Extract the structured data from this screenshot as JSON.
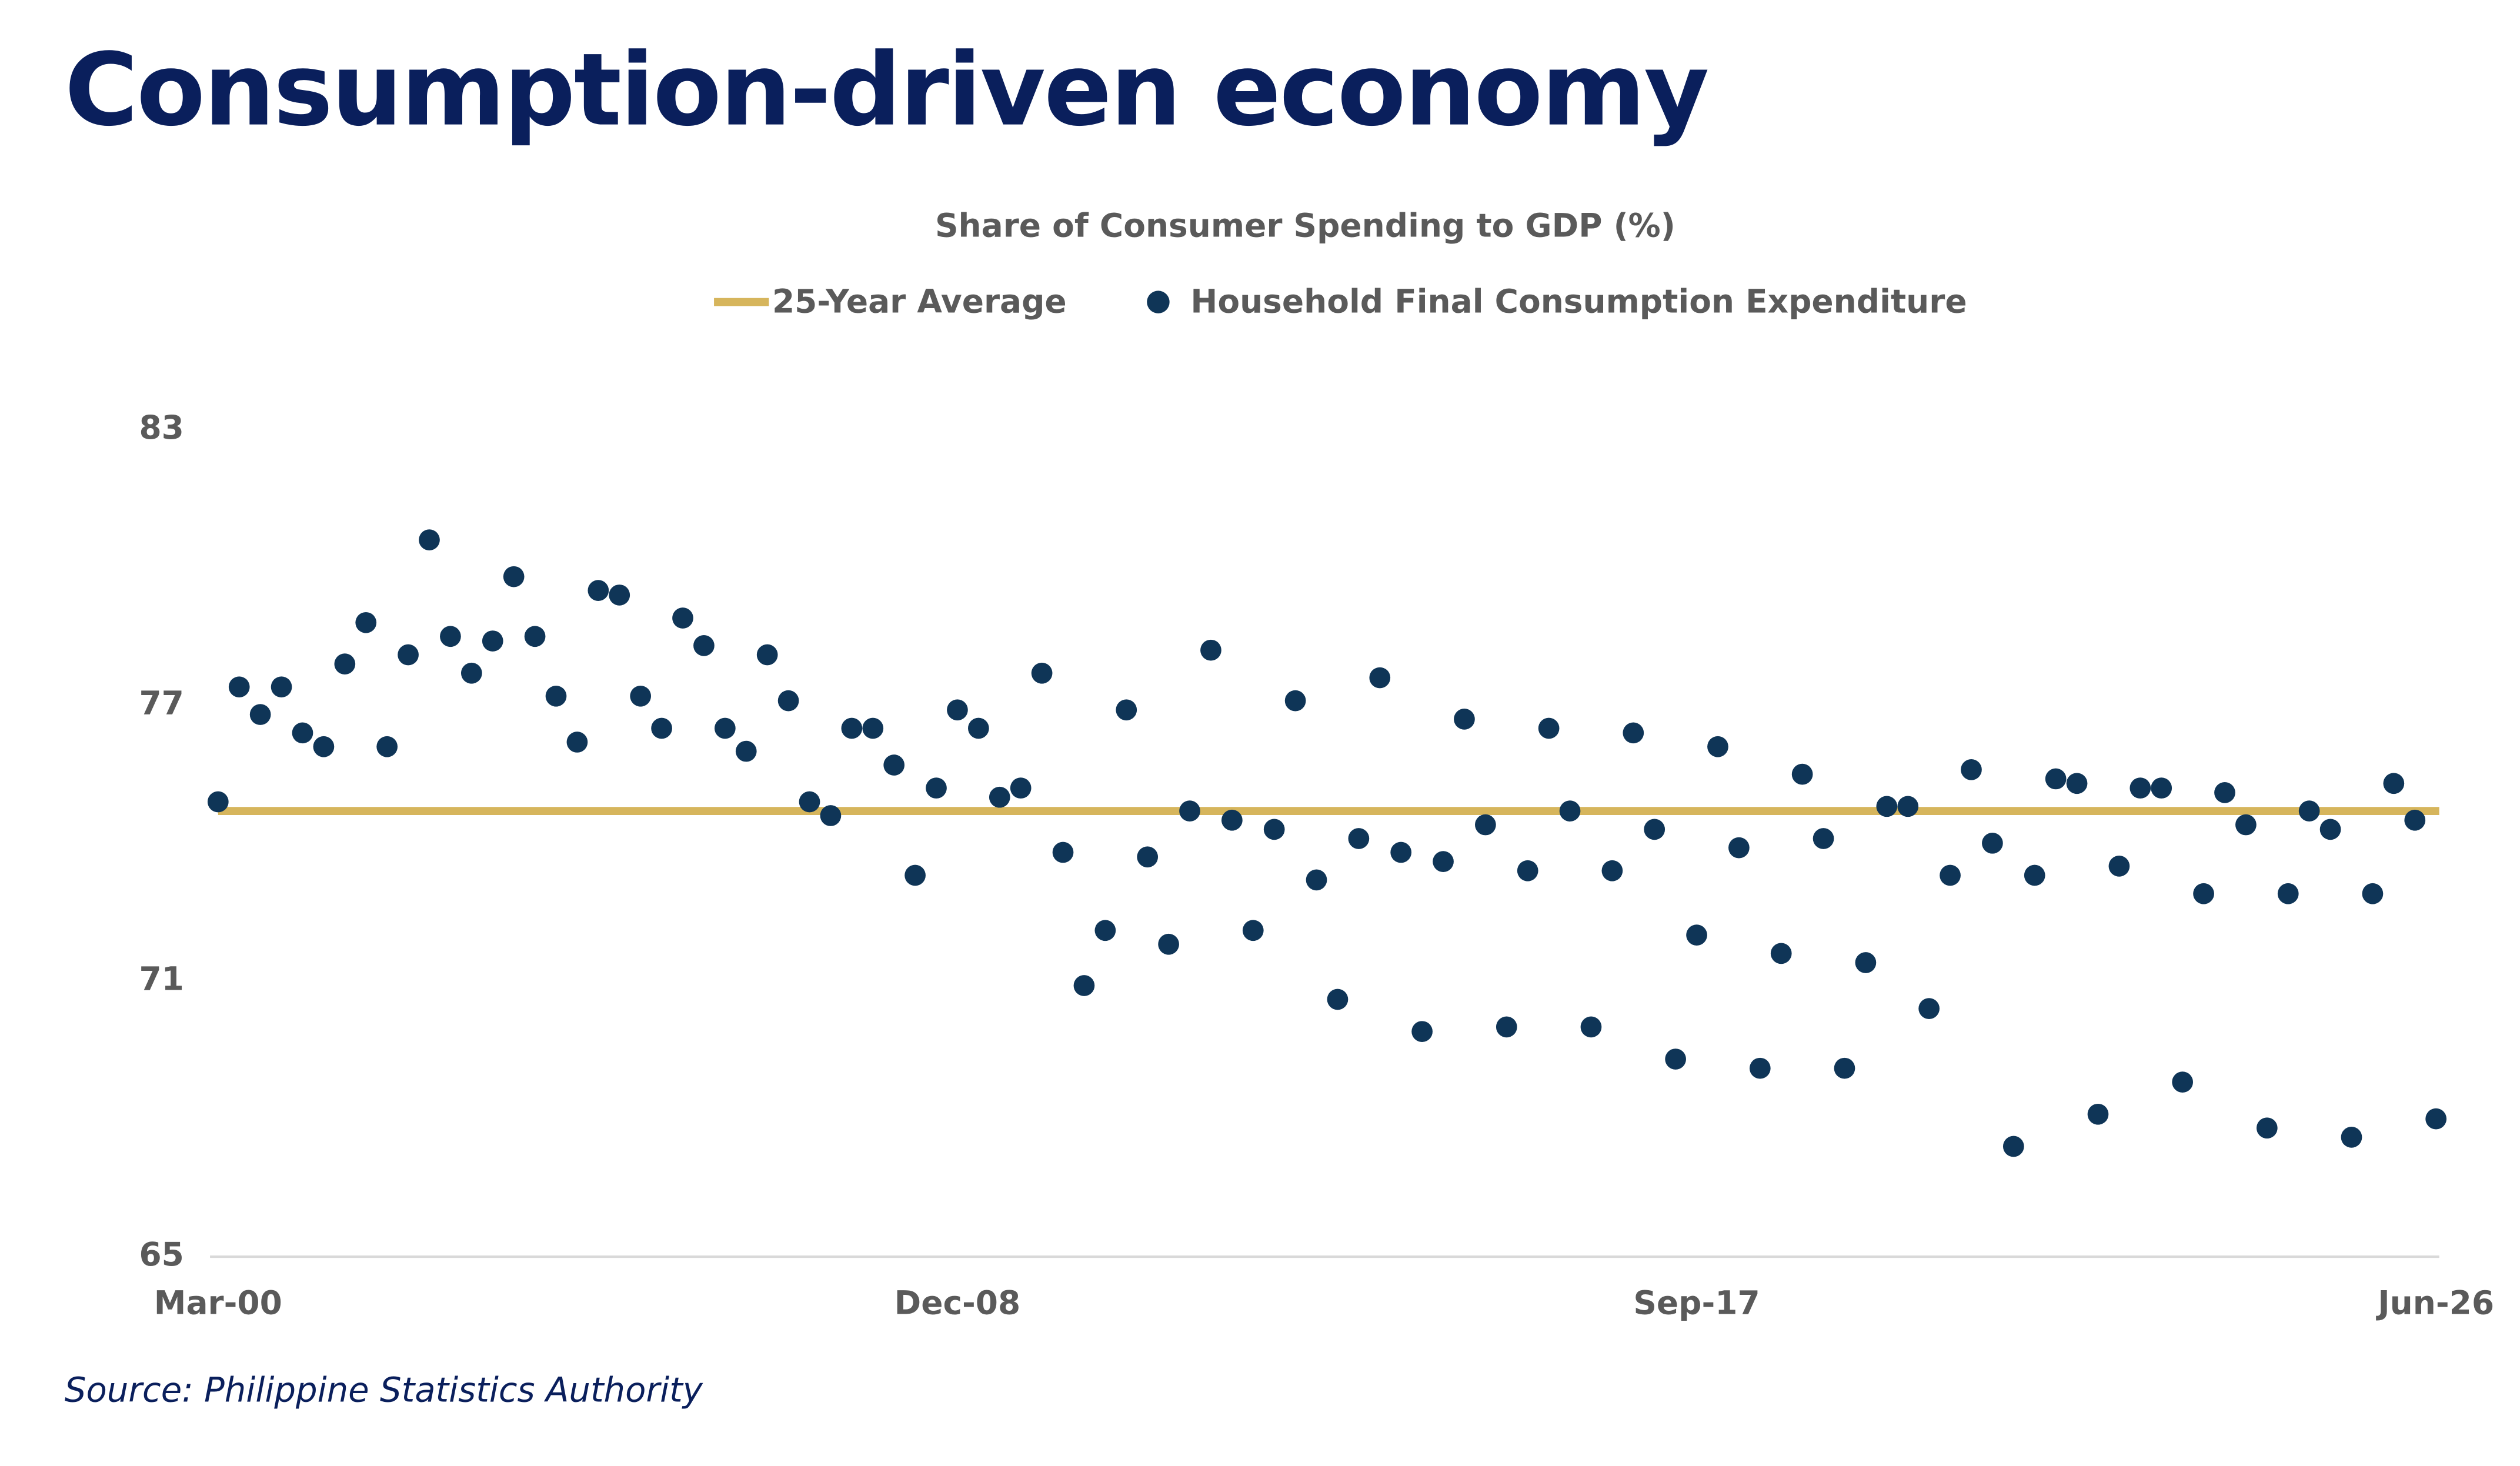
{
  "chart_data": {
    "type": "scatter",
    "title": "Consumption-driven economy",
    "subtitle": "Share of Consumer Spending to GDP (%)",
    "source": "Source: Philippine Statistics Authority",
    "categories": [
      "Mar-00",
      null,
      null,
      null,
      null,
      null,
      null,
      null,
      null,
      null,
      null,
      null,
      null,
      null,
      null,
      null,
      null,
      null,
      null,
      null,
      null,
      null,
      null,
      null,
      null,
      null,
      null,
      null,
      null,
      null,
      null,
      null,
      null,
      null,
      null,
      "Dec-08",
      null,
      null,
      null,
      null,
      null,
      null,
      null,
      null,
      null,
      null,
      null,
      null,
      null,
      null,
      null,
      null,
      null,
      null,
      null,
      null,
      null,
      null,
      null,
      null,
      null,
      null,
      null,
      null,
      null,
      null,
      null,
      null,
      null,
      null,
      "Sep-17",
      null,
      null,
      null,
      null,
      null,
      null,
      null,
      null,
      null,
      null,
      null,
      null,
      null,
      null,
      null,
      null,
      null,
      null,
      null,
      null,
      null,
      null,
      null,
      null,
      null,
      null,
      null,
      null,
      null,
      null,
      null,
      null,
      null,
      null,
      "Jun-26"
    ],
    "average": {
      "name": "25-Year Average",
      "value": 74.7,
      "color": "#d6b55c"
    },
    "series": [
      {
        "name": "Household Final Consumption Expenditure",
        "color": "#0f3557",
        "values": [
          74.9,
          77.4,
          76.8,
          77.4,
          76.4,
          76.1,
          77.9,
          78.8,
          76.1,
          78.1,
          80.6,
          78.5,
          77.7,
          78.4,
          79.8,
          78.5,
          77.2,
          76.2,
          79.5,
          79.4,
          77.2,
          76.5,
          78.9,
          78.3,
          76.5,
          76.0,
          78.1,
          77.1,
          74.9,
          74.6,
          76.5,
          76.5,
          75.7,
          73.3,
          75.2,
          76.9,
          76.5,
          75.0,
          75.2,
          77.7,
          73.8,
          70.9,
          72.1,
          76.9,
          73.7,
          71.8,
          74.7,
          78.2,
          74.5,
          72.1,
          74.3,
          77.1,
          73.2,
          70.6,
          74.1,
          77.6,
          73.8,
          69.9,
          73.6,
          76.7,
          74.4,
          70.0,
          73.4,
          76.5,
          74.7,
          70.0,
          73.4,
          76.4,
          74.3,
          69.3,
          72.0,
          76.1,
          73.9,
          69.1,
          71.6,
          75.5,
          74.1,
          69.1,
          71.4,
          74.8,
          74.8,
          70.4,
          73.3,
          75.6,
          74.0,
          67.4,
          73.3,
          75.4,
          75.3,
          68.1,
          73.5,
          75.2,
          75.2,
          68.8,
          72.9,
          75.1,
          74.4,
          67.8,
          72.9,
          74.7,
          74.3,
          67.6,
          72.9,
          75.3,
          74.5,
          68.0
        ]
      }
    ],
    "ylim": [
      65,
      83
    ],
    "yticks": [
      65,
      71,
      77,
      83
    ],
    "grid": false
  }
}
